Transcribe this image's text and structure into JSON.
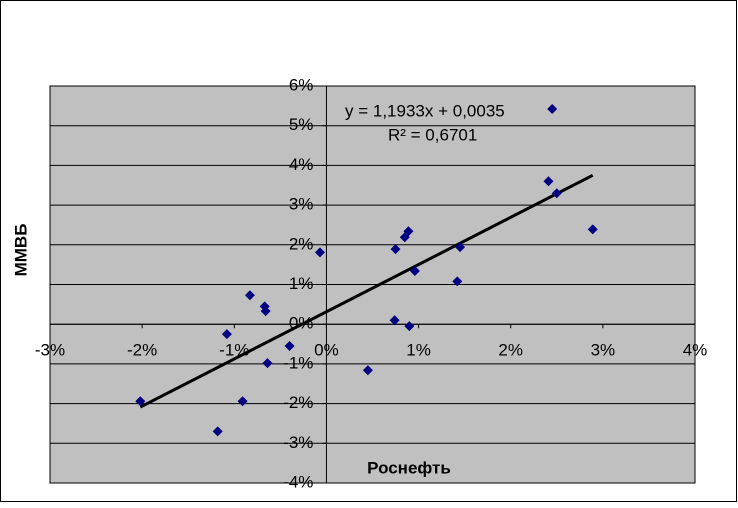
{
  "chart_data": {
    "type": "scatter",
    "x_label": "Роснефть",
    "y_label": "ММВБ",
    "color": "#000080",
    "grid": true,
    "series": [
      {
        "name": "ММВБ",
        "x": [
          2.45,
          2.41,
          2.5,
          2.89,
          1.45,
          1.42,
          0.89,
          0.85,
          0.75,
          0.96,
          0.74,
          0.9,
          0.45,
          -0.07,
          -0.83,
          -0.67,
          -0.66,
          -1.08,
          -0.4,
          -0.64,
          -2.02,
          -0.91,
          -1.18
        ],
        "values": [
          5.42,
          3.6,
          3.3,
          2.39,
          1.94,
          1.08,
          2.34,
          2.19,
          1.89,
          1.34,
          0.1,
          -0.05,
          -1.16,
          1.81,
          0.73,
          0.45,
          0.33,
          -0.25,
          -0.55,
          -0.98,
          -1.94,
          -1.94,
          -2.7
        ]
      }
    ],
    "trendline": {
      "equation": "y = 1,1933x + 0,0035",
      "r_squared": "R² = 0,6701"
    },
    "xlim": [
      -3,
      4
    ],
    "xticks": [
      {
        "value": -3,
        "label": "-3%"
      },
      {
        "value": -2,
        "label": "-2%"
      },
      {
        "value": -1,
        "label": "-1%"
      },
      {
        "value": 0,
        "label": "0%"
      },
      {
        "value": 1,
        "label": "1%"
      },
      {
        "value": 2,
        "label": "2%"
      },
      {
        "value": 3,
        "label": "3%"
      },
      {
        "value": 4,
        "label": "4%"
      }
    ],
    "ylim": [
      -4,
      6
    ],
    "yticks": [
      {
        "value": -4,
        "label": "-4%"
      },
      {
        "value": -3,
        "label": "-3%"
      },
      {
        "value": -2,
        "label": "-2%"
      },
      {
        "value": -1,
        "label": "-1%"
      },
      {
        "value": 0,
        "label": "0%"
      },
      {
        "value": 1,
        "label": "1%"
      },
      {
        "value": 2,
        "label": "2%"
      },
      {
        "value": 3,
        "label": "3%"
      },
      {
        "value": 4,
        "label": "4%"
      },
      {
        "value": 5,
        "label": "5%"
      },
      {
        "value": 6,
        "label": "6%"
      }
    ]
  }
}
